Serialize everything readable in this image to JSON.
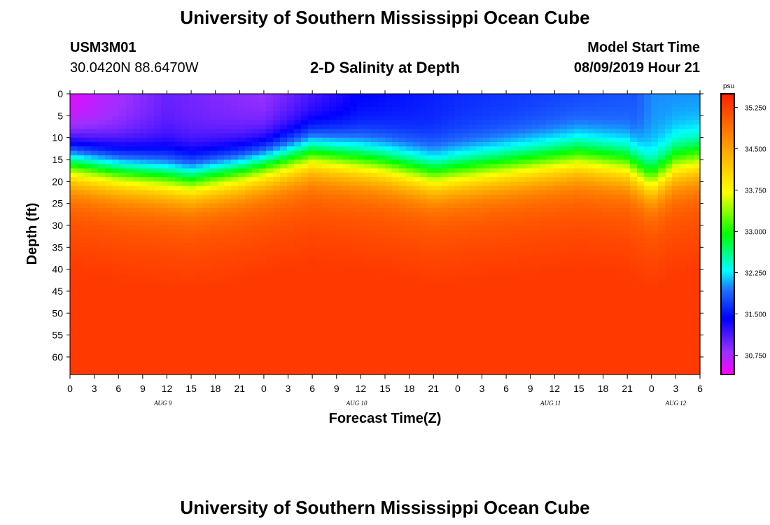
{
  "header": {
    "title": "University of Southern Mississippi Ocean Cube",
    "station": "USM3M01",
    "coords": "30.0420N 88.6470W",
    "subtitle": "2-D Salinity at Depth",
    "model_start_label": "Model Start Time",
    "model_start_value": "08/09/2019 Hour 21"
  },
  "footer": {
    "title": "University of Southern Mississippi Ocean Cube"
  },
  "chart_data": {
    "type": "heatmap",
    "title": "2-D Salinity at Depth",
    "xlabel": "Forecast Time(Z)",
    "ylabel": "Depth (ft)",
    "x_range_hours": [
      0,
      78
    ],
    "y_range_ft": [
      0,
      64
    ],
    "y_ticks": [
      0,
      5,
      10,
      15,
      20,
      25,
      30,
      35,
      40,
      45,
      50,
      55,
      60
    ],
    "x_ticks": [
      {
        "h": 0,
        "label": "0"
      },
      {
        "h": 3,
        "label": "3"
      },
      {
        "h": 6,
        "label": "6"
      },
      {
        "h": 9,
        "label": "9"
      },
      {
        "h": 12,
        "label": "12"
      },
      {
        "h": 15,
        "label": "15"
      },
      {
        "h": 18,
        "label": "18"
      },
      {
        "h": 21,
        "label": "21"
      },
      {
        "h": 24,
        "label": "0"
      },
      {
        "h": 27,
        "label": "3"
      },
      {
        "h": 30,
        "label": "6"
      },
      {
        "h": 33,
        "label": "9"
      },
      {
        "h": 36,
        "label": "12"
      },
      {
        "h": 39,
        "label": "15"
      },
      {
        "h": 42,
        "label": "18"
      },
      {
        "h": 45,
        "label": "21"
      },
      {
        "h": 48,
        "label": "0"
      },
      {
        "h": 51,
        "label": "3"
      },
      {
        "h": 54,
        "label": "6"
      },
      {
        "h": 57,
        "label": "9"
      },
      {
        "h": 60,
        "label": "12"
      },
      {
        "h": 63,
        "label": "15"
      },
      {
        "h": 66,
        "label": "18"
      },
      {
        "h": 69,
        "label": "21"
      },
      {
        "h": 72,
        "label": "0"
      },
      {
        "h": 75,
        "label": "3"
      },
      {
        "h": 78,
        "label": "6"
      }
    ],
    "day_labels": [
      {
        "h": 11.5,
        "label": "AUG 9"
      },
      {
        "h": 35.5,
        "label": "AUG 10"
      },
      {
        "h": 59.5,
        "label": "AUG 11"
      },
      {
        "h": 75,
        "label": "AUG 12"
      }
    ],
    "colorbar": {
      "unit": "psu",
      "min": 30.4,
      "max": 35.5,
      "ticks": [
        "35.250",
        "34.500",
        "33.750",
        "33.000",
        "32.250",
        "31.500",
        "30.750"
      ],
      "tick_values": [
        35.25,
        34.5,
        33.75,
        33.0,
        32.25,
        31.5,
        30.75
      ]
    },
    "halocline_depth_ft": [
      {
        "h": 0,
        "d": 15.5
      },
      {
        "h": 6,
        "d": 17.5
      },
      {
        "h": 15,
        "d": 19.5
      },
      {
        "h": 21,
        "d": 17.5
      },
      {
        "h": 30,
        "d": 13.5
      },
      {
        "h": 39,
        "d": 16
      },
      {
        "h": 45,
        "d": 18.5
      },
      {
        "h": 54,
        "d": 16.5
      },
      {
        "h": 63,
        "d": 14.5
      },
      {
        "h": 69,
        "d": 16
      },
      {
        "h": 72,
        "d": 20
      },
      {
        "h": 75,
        "d": 16
      },
      {
        "h": 78,
        "d": 15
      }
    ],
    "surface_salinity_psu": [
      {
        "h": 0,
        "s": 30.5
      },
      {
        "h": 12,
        "s": 31.0
      },
      {
        "h": 24,
        "s": 30.8
      },
      {
        "h": 36,
        "s": 31.4
      },
      {
        "h": 48,
        "s": 31.6
      },
      {
        "h": 60,
        "s": 31.7
      },
      {
        "h": 70,
        "s": 31.8
      },
      {
        "h": 72,
        "s": 32.0
      },
      {
        "h": 78,
        "s": 32.0
      }
    ],
    "deep_salinity_psu": 35.3
  }
}
